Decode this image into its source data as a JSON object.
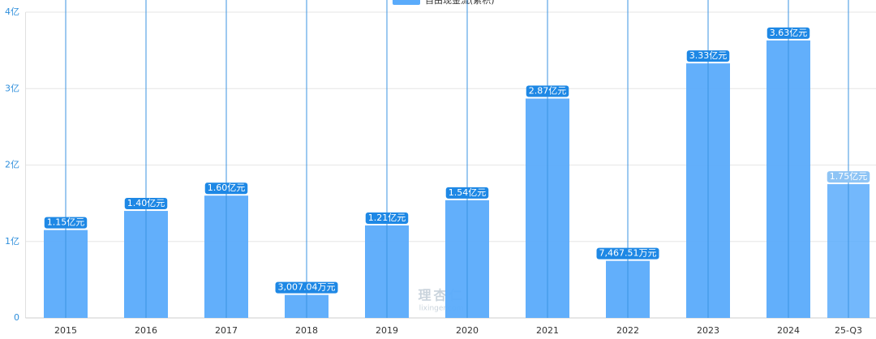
{
  "chart_data": {
    "type": "bar",
    "categories": [
      "2015",
      "2016",
      "2017",
      "2018",
      "2019",
      "2020",
      "2021",
      "2022",
      "2023",
      "2024",
      "25-Q3"
    ],
    "series": [
      {
        "name": "自由现金流(累积)",
        "color": "#5aabfb",
        "values": [
          1.15,
          1.4,
          1.6,
          0.300704,
          1.21,
          1.54,
          2.87,
          0.746751,
          3.33,
          3.63,
          1.75
        ],
        "value_labels": [
          "1.15亿元",
          "1.40亿元",
          "1.60亿元",
          "3,007.04万元",
          "1.21亿元",
          "1.54亿元",
          "2.87亿元",
          "7,467.51万元",
          "3.33亿元",
          "3.63亿元",
          "1.75亿元"
        ]
      }
    ],
    "ylim": [
      0,
      4
    ],
    "yticks": [
      0,
      {
        "value": 1,
        "label": "1亿"
      },
      {
        "value": 2,
        "label": "2亿"
      },
      {
        "value": 3,
        "label": "3亿"
      },
      {
        "value": 4,
        "label": "4亿"
      }
    ],
    "grid": true,
    "legend": "top",
    "watermark": [
      "理杏仁",
      "lixinger.com"
    ]
  }
}
